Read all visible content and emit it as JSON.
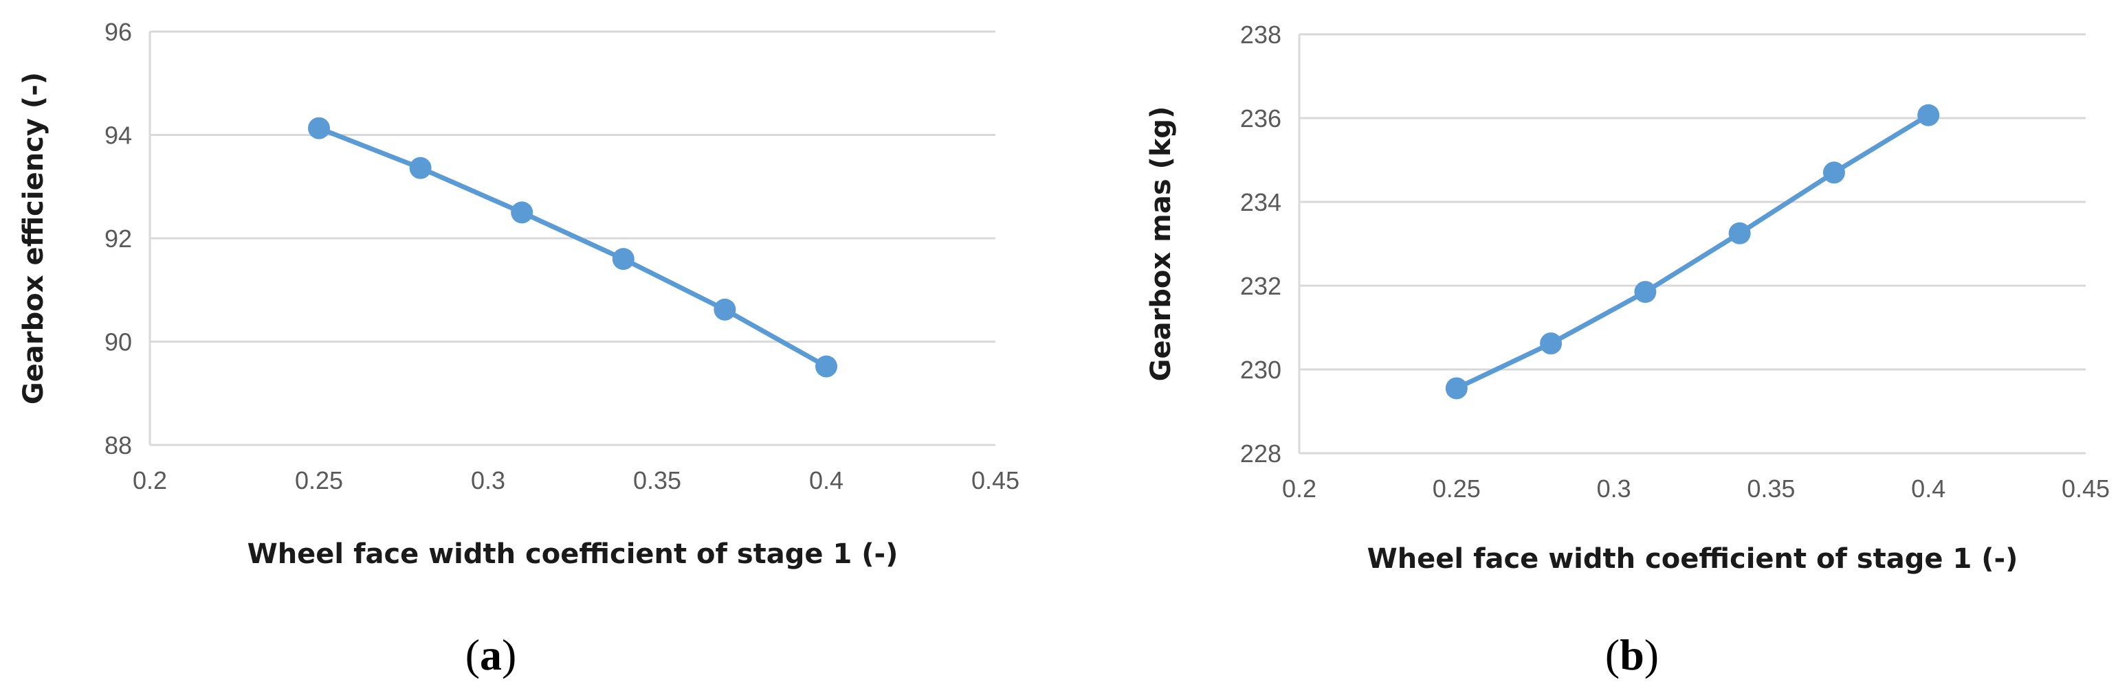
{
  "chart_data": [
    {
      "type": "line",
      "caption_open": "(",
      "caption_letter": "a",
      "caption_close": ")",
      "xlabel": "Wheel face width coefficient of stage 1 (-)",
      "ylabel": "Gearbox efficiency (-)",
      "xlim": [
        0.2,
        0.45
      ],
      "ylim": [
        88,
        96
      ],
      "xticks": [
        "0.2",
        "0.25",
        "0.3",
        "0.35",
        "0.4",
        "0.45"
      ],
      "yticks": [
        "88",
        "90",
        "92",
        "94",
        "96"
      ],
      "grid": true,
      "series": [
        {
          "color": "#5B9BD5",
          "x": [
            0.25,
            0.28,
            0.31,
            0.34,
            0.37,
            0.4
          ],
          "y": [
            94.13,
            93.36,
            92.5,
            91.6,
            90.62,
            89.52
          ]
        }
      ]
    },
    {
      "type": "line",
      "caption_open": "(",
      "caption_letter": "b",
      "caption_close": ")",
      "xlabel": "Wheel face width coefficient of stage 1 (-)",
      "ylabel": "Gearbox mas (kg)",
      "xlim": [
        0.2,
        0.45
      ],
      "ylim": [
        228,
        238
      ],
      "xticks": [
        "0.2",
        "0.25",
        "0.3",
        "0.35",
        "0.4",
        "0.45"
      ],
      "yticks": [
        "228",
        "230",
        "232",
        "234",
        "236",
        "238"
      ],
      "grid": true,
      "series": [
        {
          "color": "#5B9BD5",
          "x": [
            0.25,
            0.28,
            0.31,
            0.34,
            0.37,
            0.4
          ],
          "y": [
            229.55,
            230.62,
            231.85,
            233.25,
            234.7,
            236.07
          ]
        }
      ]
    }
  ]
}
